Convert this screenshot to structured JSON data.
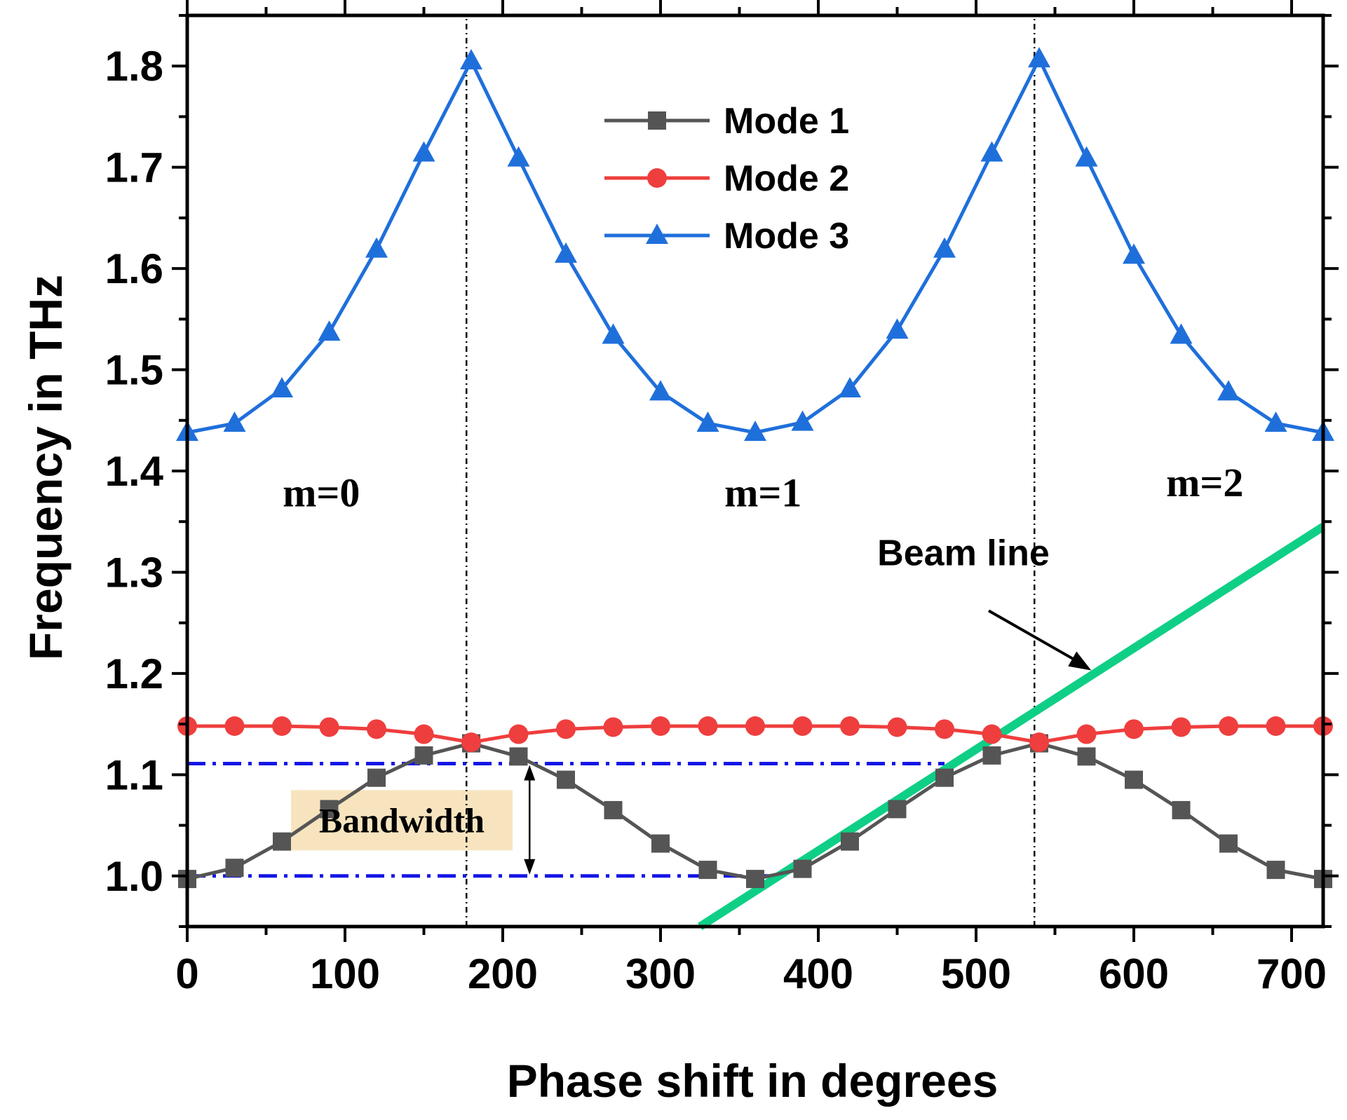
{
  "chart_data": {
    "type": "line",
    "xlabel": "Phase shift in degrees",
    "ylabel": "Frequency in THz",
    "xlim": [
      0,
      720
    ],
    "ylim": [
      0.95,
      1.85
    ],
    "xticks": [
      0,
      100,
      200,
      300,
      400,
      500,
      600,
      700
    ],
    "xtick_labels": [
      "0",
      "100",
      "200",
      "300",
      "400",
      "500",
      "600",
      "700"
    ],
    "yticks": [
      1.0,
      1.1,
      1.2,
      1.3,
      1.4,
      1.5,
      1.6,
      1.7,
      1.8
    ],
    "ytick_labels": [
      "1.0",
      "1.1",
      "1.2",
      "1.3",
      "1.4",
      "1.5",
      "1.6",
      "1.7",
      "1.8"
    ],
    "x": [
      0,
      30,
      60,
      90,
      120,
      150,
      180,
      210,
      240,
      270,
      300,
      330,
      360,
      390,
      420,
      450,
      480,
      510,
      540,
      570,
      600,
      630,
      660,
      690,
      720
    ],
    "series": [
      {
        "name": "Mode 1",
        "color": "#555555",
        "marker": "square",
        "values": [
          0.997,
          1.008,
          1.034,
          1.066,
          1.097,
          1.119,
          1.131,
          1.118,
          1.095,
          1.065,
          1.032,
          1.006,
          0.997,
          1.007,
          1.034,
          1.066,
          1.097,
          1.119,
          1.131,
          1.118,
          1.095,
          1.065,
          1.032,
          1.006,
          0.997
        ]
      },
      {
        "name": "Mode 2",
        "color": "#ef3e3e",
        "marker": "circle",
        "values": [
          1.148,
          1.148,
          1.148,
          1.147,
          1.145,
          1.14,
          1.132,
          1.14,
          1.145,
          1.147,
          1.148,
          1.148,
          1.148,
          1.148,
          1.148,
          1.147,
          1.145,
          1.14,
          1.132,
          1.14,
          1.145,
          1.147,
          1.148,
          1.148,
          1.148
        ]
      },
      {
        "name": "Mode 3",
        "color": "#1f6fdb",
        "marker": "triangle",
        "values": [
          1.438,
          1.447,
          1.481,
          1.537,
          1.619,
          1.714,
          1.805,
          1.709,
          1.614,
          1.534,
          1.478,
          1.447,
          1.438,
          1.448,
          1.481,
          1.539,
          1.619,
          1.714,
          1.807,
          1.709,
          1.613,
          1.534,
          1.478,
          1.447,
          1.438
        ]
      }
    ],
    "beam_line": {
      "label": "Beam line",
      "color": "#0fcf86",
      "x": [
        325,
        720
      ],
      "y": [
        0.95,
        1.345
      ]
    },
    "boundaries": {
      "color": "#000000",
      "x": [
        177,
        537
      ]
    },
    "bandwidth": {
      "label": "Bandwidth",
      "color": "#1515e6",
      "lower": 1.0,
      "upper": 1.111,
      "lower_x": [
        0,
        370
      ],
      "upper_x": [
        0,
        480
      ],
      "arrow_x": 217,
      "box_fill": "#f7e4bf"
    },
    "region_labels": [
      {
        "text": "m=0",
        "x": 85,
        "y": 1.365
      },
      {
        "text": "m=1",
        "x": 365,
        "y": 1.365
      },
      {
        "text": "m=2",
        "x": 645,
        "y": 1.375
      }
    ],
    "legend": {
      "location": "top-center",
      "entries": [
        "Mode 1",
        "Mode 2",
        "Mode 3"
      ]
    }
  }
}
